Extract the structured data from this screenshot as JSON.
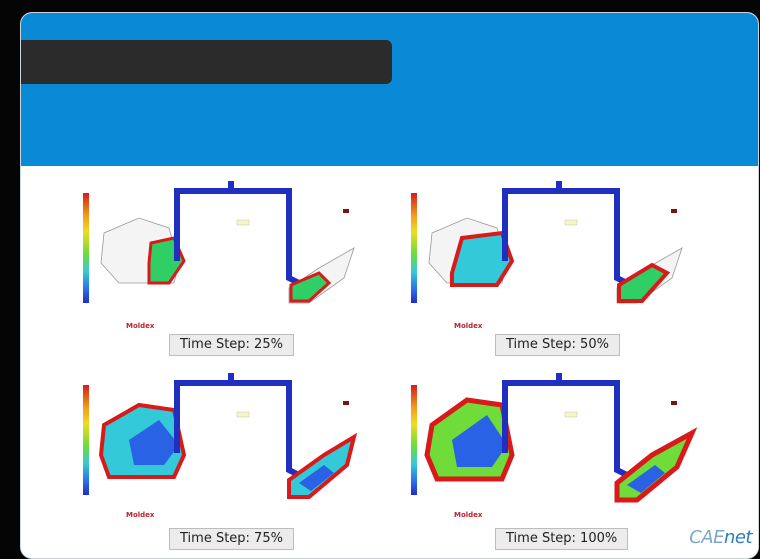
{
  "slide": {
    "title": "",
    "colors": {
      "header_blue": "#0a8ad6",
      "title_bar": "#2b2b2b",
      "runner_blue": "#1f2fbf",
      "melt_red": "#d81a1a",
      "melt_green": "#6fdc3a"
    }
  },
  "panels": [
    {
      "caption": "Time Step: 25%",
      "fill_fraction": 0.25
    },
    {
      "caption": "Time Step: 50%",
      "fill_fraction": 0.5
    },
    {
      "caption": "Time Step: 75%",
      "fill_fraction": 0.75
    },
    {
      "caption": "Time Step: 100%",
      "fill_fraction": 1.0
    }
  ],
  "brand": {
    "software": "Moldex",
    "logo_cae": "CAE",
    "logo_net": "net"
  }
}
